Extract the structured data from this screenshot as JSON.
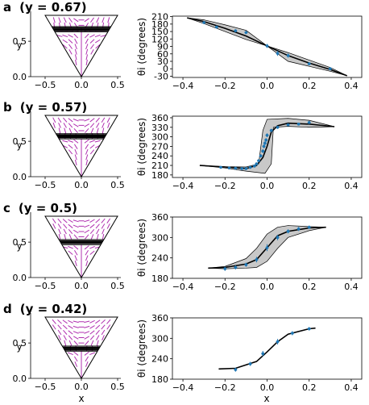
{
  "panels": [
    {
      "letter": "a",
      "label": "(y = 0.67)",
      "y_line": 0.67,
      "theta_yticks": [
        -30,
        0,
        30,
        60,
        90,
        120,
        150,
        180,
        210
      ],
      "theta_ylim": [
        -35,
        212
      ],
      "theta_ylabel": "θi (degrees)",
      "fit": [
        [
          -0.38,
          205
        ],
        [
          -0.3,
          190
        ],
        [
          -0.2,
          163
        ],
        [
          -0.1,
          132
        ],
        [
          0,
          92
        ],
        [
          0.1,
          53
        ],
        [
          0.2,
          23
        ],
        [
          0.3,
          -3
        ],
        [
          0.38,
          -28
        ]
      ],
      "band_upper": [
        [
          -0.38,
          205
        ],
        [
          -0.3,
          197
        ],
        [
          -0.2,
          177
        ],
        [
          -0.1,
          155
        ],
        [
          0,
          92
        ],
        [
          0.1,
          65
        ],
        [
          0.2,
          35
        ],
        [
          0.3,
          5
        ],
        [
          0.38,
          -28
        ]
      ],
      "band_lower": [
        [
          -0.38,
          205
        ],
        [
          -0.3,
          182
        ],
        [
          -0.2,
          150
        ],
        [
          -0.1,
          118
        ],
        [
          0,
          92
        ],
        [
          0.1,
          30
        ],
        [
          0.2,
          10
        ],
        [
          0.3,
          -10
        ],
        [
          0.38,
          -28
        ]
      ],
      "points": [
        [
          -0.3,
          186,
          6
        ],
        [
          -0.24,
          168,
          6
        ],
        [
          -0.15,
          153,
          6
        ],
        [
          -0.1,
          146,
          6
        ],
        [
          0,
          92,
          8
        ],
        [
          0.05,
          62,
          10
        ],
        [
          0.1,
          53,
          8
        ],
        [
          0.2,
          20,
          6
        ],
        [
          0.3,
          0,
          6
        ]
      ]
    },
    {
      "letter": "b",
      "label": "(y = 0.57)",
      "y_line": 0.57,
      "theta_yticks": [
        180,
        210,
        240,
        270,
        300,
        330,
        360
      ],
      "theta_ylim": [
        172,
        365
      ],
      "theta_ylabel": "θi (degrees)",
      "fit": [
        [
          -0.32,
          210
        ],
        [
          -0.2,
          205
        ],
        [
          -0.1,
          200
        ],
        [
          -0.05,
          210
        ],
        [
          -0.02,
          235
        ],
        [
          0,
          270
        ],
        [
          0.02,
          315
        ],
        [
          0.05,
          335
        ],
        [
          0.1,
          343
        ],
        [
          0.2,
          340
        ],
        [
          0.32,
          332
        ]
      ],
      "band_upper": [
        [
          -0.32,
          210
        ],
        [
          -0.2,
          206
        ],
        [
          -0.1,
          205
        ],
        [
          -0.04,
          215
        ],
        [
          -0.02,
          320
        ],
        [
          0,
          355
        ],
        [
          0.1,
          358
        ],
        [
          0.2,
          352
        ],
        [
          0.32,
          332
        ]
      ],
      "band_lower": [
        [
          -0.32,
          210
        ],
        [
          -0.2,
          202
        ],
        [
          -0.1,
          192
        ],
        [
          -0.01,
          185
        ],
        [
          0,
          195
        ],
        [
          0.02,
          215
        ],
        [
          0.03,
          330
        ],
        [
          0.1,
          333
        ],
        [
          0.2,
          330
        ],
        [
          0.32,
          332
        ]
      ],
      "points": [
        [
          -0.22,
          204,
          3
        ],
        [
          -0.18,
          202,
          3
        ],
        [
          -0.15,
          201,
          3
        ],
        [
          -0.12,
          200,
          3
        ],
        [
          -0.1,
          200,
          3
        ],
        [
          -0.08,
          204,
          3
        ],
        [
          -0.06,
          208,
          4
        ],
        [
          -0.05,
          215,
          4
        ],
        [
          -0.04,
          225,
          4
        ],
        [
          -0.03,
          240,
          5
        ],
        [
          -0.02,
          255,
          6
        ],
        [
          -0.015,
          270,
          6
        ],
        [
          -0.01,
          280,
          6
        ],
        [
          -0.005,
          290,
          6
        ],
        [
          0,
          305,
          6
        ],
        [
          0.02,
          320,
          5
        ],
        [
          0.05,
          330,
          5
        ],
        [
          0.1,
          338,
          4
        ],
        [
          0.15,
          340,
          4
        ],
        [
          0.2,
          345,
          5
        ]
      ]
    },
    {
      "letter": "c",
      "label": "(y = 0.5)",
      "y_line": 0.5,
      "theta_yticks": [
        180,
        240,
        300,
        360
      ],
      "theta_ylim": [
        180,
        360
      ],
      "theta_ylabel": "θi (degrees)",
      "fit": [
        [
          -0.28,
          210
        ],
        [
          -0.2,
          212
        ],
        [
          -0.1,
          222
        ],
        [
          -0.05,
          235
        ],
        [
          0,
          270
        ],
        [
          0.05,
          305
        ],
        [
          0.1,
          318
        ],
        [
          0.2,
          328
        ],
        [
          0.28,
          330
        ]
      ],
      "band_upper": [
        [
          -0.28,
          210
        ],
        [
          -0.2,
          215
        ],
        [
          -0.1,
          238
        ],
        [
          -0.05,
          268
        ],
        [
          0,
          310
        ],
        [
          0.05,
          330
        ],
        [
          0.1,
          335
        ],
        [
          0.2,
          332
        ],
        [
          0.28,
          330
        ]
      ],
      "band_lower": [
        [
          -0.28,
          210
        ],
        [
          -0.2,
          208
        ],
        [
          -0.1,
          210
        ],
        [
          -0.05,
          212
        ],
        [
          0,
          230
        ],
        [
          0.05,
          268
        ],
        [
          0.1,
          300
        ],
        [
          0.2,
          320
        ],
        [
          0.28,
          330
        ]
      ],
      "points": [
        [
          -0.2,
          208,
          6
        ],
        [
          -0.15,
          212,
          6
        ],
        [
          -0.1,
          220,
          6
        ],
        [
          -0.05,
          235,
          8
        ],
        [
          0,
          270,
          10
        ],
        [
          0.05,
          300,
          8
        ],
        [
          0.1,
          318,
          6
        ],
        [
          0.15,
          325,
          6
        ],
        [
          0.2,
          330,
          5
        ]
      ]
    },
    {
      "letter": "d",
      "label": "(y = 0.42)",
      "y_line": 0.42,
      "theta_yticks": [
        180,
        240,
        300,
        360
      ],
      "theta_ylim": [
        180,
        360
      ],
      "theta_ylabel": "θi (degrees)",
      "fit": [
        [
          -0.23,
          210
        ],
        [
          -0.15,
          212
        ],
        [
          -0.05,
          232
        ],
        [
          0,
          260
        ],
        [
          0.05,
          290
        ],
        [
          0.1,
          312
        ],
        [
          0.2,
          328
        ],
        [
          0.23,
          330
        ]
      ],
      "band_upper": [],
      "band_lower": [],
      "points": [
        [
          -0.15,
          208,
          6
        ],
        [
          -0.08,
          225,
          6
        ],
        [
          -0.02,
          255,
          8
        ],
        [
          0.05,
          290,
          8
        ],
        [
          0.12,
          315,
          6
        ],
        [
          0.2,
          328,
          5
        ]
      ]
    }
  ],
  "triangle_xticks": [
    -0.5,
    0.0,
    0.5
  ],
  "triangle_xtick_labels": [
    "−0.5",
    "0.0",
    "0.5"
  ],
  "triangle_yticks": [
    0.0,
    0.5
  ],
  "triangle_ytick_labels": [
    "0.0",
    "0.5"
  ],
  "triangle_ylabel": "y",
  "x_axis_label": "x",
  "theta_xticks": [
    -0.4,
    -0.2,
    0.0,
    0.2,
    0.4
  ],
  "theta_xtick_labels": [
    "−0.4",
    "−0.2",
    "0.0",
    "0.2",
    "0.4"
  ],
  "colors": {
    "director": "#b030b0",
    "points": "#1f77b4",
    "band": "#c8c8c8",
    "line": "#000000"
  },
  "chart_data": [
    {
      "type": "scatter",
      "panel": "a",
      "xlabel": "",
      "ylabel": "θi (degrees)",
      "xlim": [
        -0.45,
        0.45
      ],
      "ylim": [
        -35,
        212
      ]
    },
    {
      "type": "scatter",
      "panel": "b",
      "xlabel": "",
      "ylabel": "θi (degrees)",
      "xlim": [
        -0.45,
        0.45
      ],
      "ylim": [
        172,
        365
      ]
    },
    {
      "type": "scatter",
      "panel": "c",
      "xlabel": "",
      "ylabel": "θi (degrees)",
      "xlim": [
        -0.45,
        0.45
      ],
      "ylim": [
        180,
        360
      ]
    },
    {
      "type": "scatter",
      "panel": "d",
      "xlabel": "x",
      "ylabel": "θi (degrees)",
      "xlim": [
        -0.45,
        0.45
      ],
      "ylim": [
        180,
        360
      ]
    }
  ]
}
